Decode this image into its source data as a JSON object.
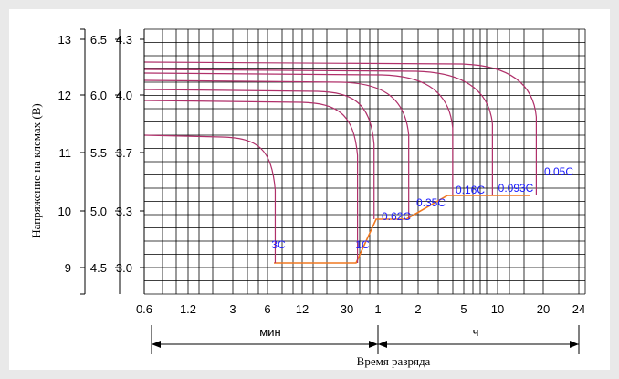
{
  "chart_data": {
    "type": "line",
    "ylabel": "Напряжение на клемах (В)",
    "xlabel": "Время разряда",
    "y_axes": [
      {
        "ticks": [
          9,
          10,
          11,
          12,
          13
        ]
      },
      {
        "ticks": [
          4.5,
          5.0,
          5.5,
          6.0,
          6.5
        ]
      },
      {
        "ticks": [
          3.0,
          3.3,
          3.7,
          4.0,
          4.3
        ]
      }
    ],
    "x_tick_labels": [
      "0.6",
      "1.2",
      "3",
      "6",
      "12",
      "30",
      "1",
      "2",
      "5",
      "10",
      "20",
      "24"
    ],
    "x_groups": [
      {
        "label": "мин",
        "from": "0.6",
        "to": "1"
      },
      {
        "label": "ч",
        "from": "1",
        "to": "24"
      }
    ],
    "series": [
      {
        "name": "3C",
        "start_v": 3.88,
        "knee_t": "5 мин",
        "end_t": "7 мин",
        "end_v": 3.18
      },
      {
        "name": "1C",
        "start_v": 4.07,
        "knee_t": "25 мин",
        "end_t": "38 мин",
        "end_v": 3.18
      },
      {
        "name": "0.62C",
        "start_v": 4.13,
        "knee_t": "35 мин",
        "end_t": "55 мин",
        "end_v": 3.42
      },
      {
        "name": "0.35C",
        "start_v": 4.18,
        "knee_t": "1 ч",
        "end_t": "1.7 ч",
        "end_v": 3.42
      },
      {
        "name": "0.16C",
        "start_v": 4.22,
        "knee_t": "2 ч",
        "end_t": "4 ч",
        "end_v": 3.55
      },
      {
        "name": "0.093C",
        "start_v": 4.24,
        "knee_t": "4 ч",
        "end_t": "9 ч",
        "end_v": 3.55
      },
      {
        "name": "0.05C",
        "start_v": 4.28,
        "knee_t": "10 ч",
        "end_t": "18 ч",
        "end_v": 3.55
      }
    ],
    "cutoff_line": {
      "name": "конечное напряжение",
      "points_v": [
        3.18,
        3.18,
        3.42,
        3.42,
        3.55,
        3.55
      ]
    },
    "colors": {
      "curves": "#b0306a",
      "cutoff": "#f07820",
      "labels": "#1a1aff",
      "grid": "#000000"
    }
  }
}
